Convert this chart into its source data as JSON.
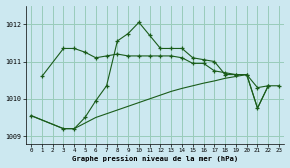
{
  "title": "Graphe pression niveau de la mer (hPa)",
  "bg_color": "#cce8f0",
  "grid_color": "#99ccbb",
  "line_color": "#1a5c1a",
  "xlim": [
    -0.5,
    23.5
  ],
  "ylim": [
    1008.8,
    1012.5
  ],
  "yticks": [
    1009,
    1010,
    1011,
    1012
  ],
  "xticks": [
    0,
    1,
    2,
    3,
    4,
    5,
    6,
    7,
    8,
    9,
    10,
    11,
    12,
    13,
    14,
    15,
    16,
    17,
    18,
    19,
    20,
    21,
    22,
    23
  ],
  "line1_x": [
    1,
    3,
    4,
    5,
    6,
    7,
    8,
    9,
    10,
    11,
    12,
    13,
    14,
    15,
    16,
    17,
    18,
    19,
    20,
    21,
    22,
    23
  ],
  "line1_y": [
    1010.6,
    1011.35,
    1011.35,
    1011.25,
    1011.1,
    1011.15,
    1011.2,
    1011.15,
    1011.15,
    1011.15,
    1011.15,
    1011.15,
    1011.1,
    1010.95,
    1010.95,
    1010.75,
    1010.7,
    1010.65,
    1010.65,
    1010.3,
    1010.35,
    1010.35
  ],
  "line2_x": [
    0,
    3,
    4,
    5,
    6,
    7,
    8,
    9,
    10,
    11,
    12,
    13,
    14,
    15,
    16,
    17,
    18,
    19,
    20,
    21,
    22
  ],
  "line2_y": [
    1009.55,
    1009.2,
    1009.2,
    1009.5,
    1009.95,
    1010.35,
    1011.55,
    1011.75,
    1012.05,
    1011.7,
    1011.35,
    1011.35,
    1011.35,
    1011.1,
    1011.05,
    1011.0,
    1010.65,
    1010.65,
    1010.65,
    1009.75,
    1010.35
  ],
  "line3_x": [
    0,
    3,
    4,
    5,
    6,
    7,
    8,
    9,
    10,
    11,
    12,
    13,
    14,
    15,
    16,
    17,
    18,
    19,
    20,
    21,
    22
  ],
  "line3_y": [
    1009.55,
    1009.2,
    1009.2,
    1009.35,
    1009.5,
    1009.6,
    1009.7,
    1009.8,
    1009.9,
    1010.0,
    1010.1,
    1010.2,
    1010.28,
    1010.35,
    1010.42,
    1010.48,
    1010.55,
    1010.6,
    1010.65,
    1009.75,
    1010.35
  ]
}
